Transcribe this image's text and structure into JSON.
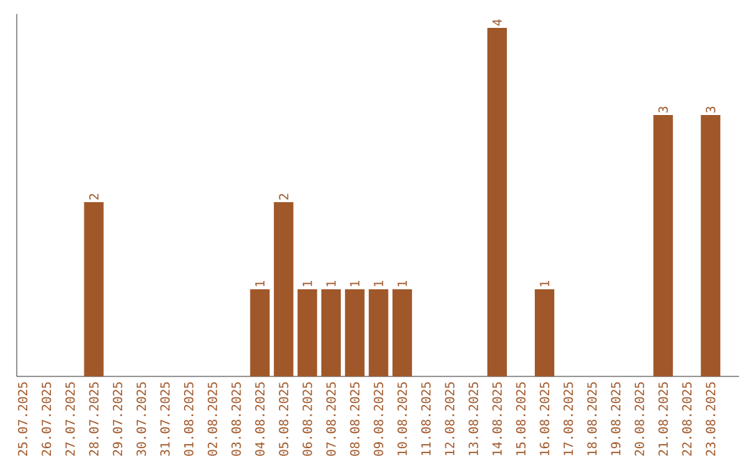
{
  "chart_data": {
    "type": "bar",
    "categories": [
      "25.07.2025",
      "26.07.2025",
      "27.07.2025",
      "28.07.2025",
      "29.07.2025",
      "30.07.2025",
      "31.07.2025",
      "01.08.2025",
      "02.08.2025",
      "03.08.2025",
      "04.08.2025",
      "05.08.2025",
      "06.08.2025",
      "07.08.2025",
      "08.08.2025",
      "09.08.2025",
      "10.08.2025",
      "11.08.2025",
      "12.08.2025",
      "13.08.2025",
      "14.08.2025",
      "15.08.2025",
      "16.08.2025",
      "17.08.2025",
      "18.08.2025",
      "19.08.2025",
      "20.08.2025",
      "21.08.2025",
      "22.08.2025",
      "23.08.2025"
    ],
    "values": [
      0,
      0,
      0,
      2,
      0,
      0,
      0,
      0,
      0,
      0,
      1,
      2,
      1,
      1,
      1,
      1,
      1,
      0,
      0,
      0,
      4,
      0,
      1,
      0,
      0,
      0,
      0,
      3,
      0,
      3
    ],
    "value_labels": [
      null,
      null,
      null,
      "2",
      null,
      null,
      null,
      null,
      null,
      null,
      "1",
      "2",
      "1",
      "1",
      "1",
      "1",
      "1",
      null,
      null,
      null,
      "4",
      null,
      "1",
      null,
      null,
      null,
      null,
      "3",
      null,
      "3"
    ],
    "color": "#a0582a"
  }
}
